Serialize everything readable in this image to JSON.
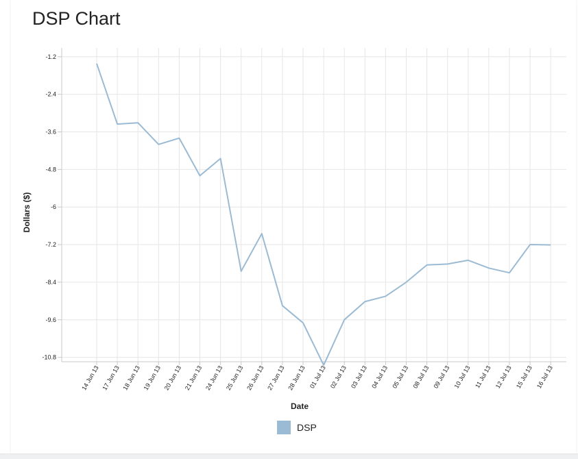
{
  "page": {
    "title": "DSP Chart"
  },
  "chart_data": {
    "type": "line",
    "xlabel": "Date",
    "ylabel": "Dollars ($)",
    "categories": [
      "14 Jun 13",
      "17 Jun 13",
      "18 Jun 13",
      "19 Jun 13",
      "20 Jun 13",
      "21 Jun 13",
      "24 Jun 13",
      "25 Jun 13",
      "26 Jun 13",
      "27 Jun 13",
      "28 Jun 13",
      "01 Jul 13",
      "02 Jul 13",
      "03 Jul 13",
      "04 Jul 13",
      "05 Jul 13",
      "08 Jul 13",
      "09 Jul 13",
      "10 Jul 13",
      "11 Jul 13",
      "12 Jul 13",
      "15 Jul 13",
      "16 Jul 13"
    ],
    "y_ticks": [
      -1.2,
      -2.4,
      -3.6,
      -4.8,
      -6,
      -7.2,
      -8.4,
      -9.6,
      -10.8
    ],
    "y_tick_labels": [
      "-1.2",
      "-2.4",
      "-3.6",
      "-4.8",
      "-6",
      "-7.2",
      "-8.4",
      "-9.6",
      "-10.8"
    ],
    "ylim": [
      -10.94,
      -0.92
    ],
    "grid": true,
    "legend_position": "bottom-center",
    "series": [
      {
        "name": "DSP",
        "color": "#9bbad3",
        "values": [
          -1.42,
          -3.35,
          -3.31,
          -4.0,
          -3.8,
          -5.0,
          -4.45,
          -8.05,
          -6.85,
          -9.15,
          -9.7,
          -11.05,
          -9.6,
          -9.02,
          -8.85,
          -8.4,
          -7.85,
          -7.82,
          -7.7,
          -7.95,
          -8.1,
          -7.2,
          -7.21
        ]
      }
    ]
  }
}
